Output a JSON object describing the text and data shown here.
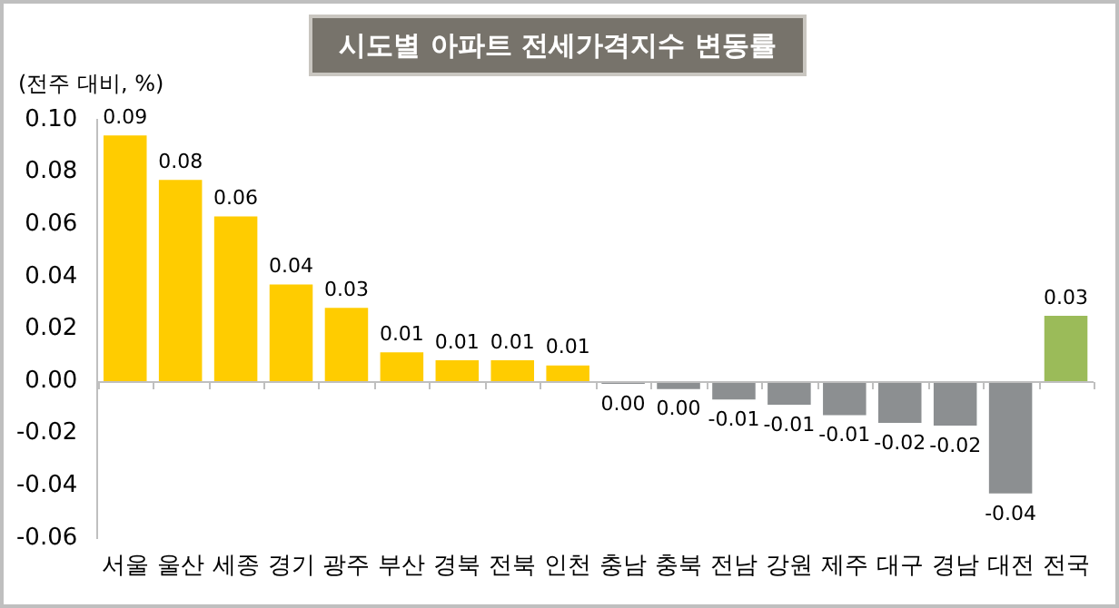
{
  "chart_data": {
    "type": "bar",
    "title": "시도별 아파트 전세가격지수 변동률",
    "ylabel": "(전주 대비, %)",
    "categories": [
      "서울",
      "울산",
      "세종",
      "경기",
      "광주",
      "부산",
      "경북",
      "전북",
      "인천",
      "충남",
      "충북",
      "전남",
      "강원",
      "제주",
      "대구",
      "경남",
      "대전",
      "전국"
    ],
    "values": [
      0.094,
      0.077,
      0.063,
      0.037,
      0.028,
      0.011,
      0.008,
      0.008,
      0.006,
      -0.001,
      -0.003,
      -0.007,
      -0.009,
      -0.013,
      -0.016,
      -0.017,
      -0.043,
      0.025
    ],
    "value_labels": [
      "0.09",
      "0.08",
      "0.06",
      "0.04",
      "0.03",
      "0.01",
      "0.01",
      "0.01",
      "0.01",
      "0.00",
      "0.00",
      "-0.01",
      "-0.01",
      "-0.01",
      "-0.02",
      "-0.02",
      "-0.04",
      "0.03"
    ],
    "colors": [
      "#ffcc00",
      "#ffcc00",
      "#ffcc00",
      "#ffcc00",
      "#ffcc00",
      "#ffcc00",
      "#ffcc00",
      "#ffcc00",
      "#ffcc00",
      "#8c8f91",
      "#8c8f91",
      "#8c8f91",
      "#8c8f91",
      "#8c8f91",
      "#8c8f91",
      "#8c8f91",
      "#8c8f91",
      "#9bbb59"
    ],
    "ylim": [
      -0.06,
      0.1
    ],
    "yticks": [
      {
        "value": -0.06,
        "label": "-0.06"
      },
      {
        "value": -0.04,
        "label": "-0.04"
      },
      {
        "value": -0.02,
        "label": "-0.02"
      },
      {
        "value": 0,
        "label": "0.00"
      },
      {
        "value": 0.02,
        "label": "0.02"
      },
      {
        "value": 0.04,
        "label": "0.04"
      },
      {
        "value": 0.06,
        "label": "0.06"
      },
      {
        "value": 0.08,
        "label": "0.08"
      },
      {
        "value": 0.1,
        "label": "0.10"
      }
    ],
    "legend": false
  }
}
